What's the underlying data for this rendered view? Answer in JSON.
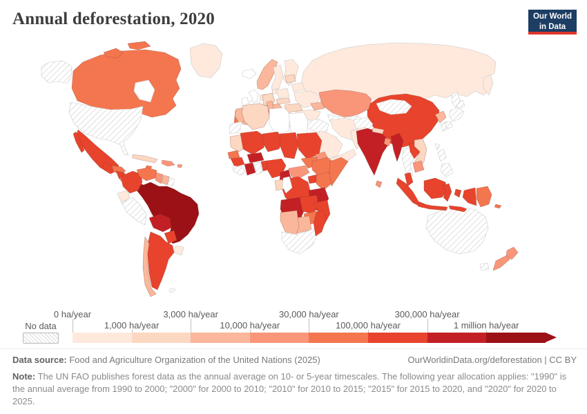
{
  "header": {
    "title": "Annual deforestation, 2020",
    "logo_line1": "Our World",
    "logo_line2": "in Data"
  },
  "legend": {
    "no_data_label": "No data",
    "ticks": [
      {
        "label": "0 ha/year",
        "row": "top"
      },
      {
        "label": "1,000 ha/year",
        "row": "bottom"
      },
      {
        "label": "3,000 ha/year",
        "row": "top"
      },
      {
        "label": "10,000 ha/year",
        "row": "bottom"
      },
      {
        "label": "30,000 ha/year",
        "row": "top"
      },
      {
        "label": "100,000 ha/year",
        "row": "bottom"
      },
      {
        "label": "300,000 ha/year",
        "row": "top"
      },
      {
        "label": "1 million ha/year",
        "row": "bottom"
      }
    ]
  },
  "footer": {
    "source_label": "Data source:",
    "source_text": " Food and Agriculture Organization of the United Nations (2025)",
    "attribution": "OurWorldinData.org/deforestation | CC BY",
    "note_label": "Note:",
    "note_text": " The UN FAO publishes forest data as the annual average on 10- or 5-year timescales. The following year allocation applies: \"1990\" is the annual average from 1990 to 2000; \"2000\" for 2000 to 2010; \"2010\" for 2010 to 2015; \"2015\" for 2015 to 2020, and \"2020\" for 2020 to 2025."
  },
  "chart_data": {
    "type": "heatmap",
    "subtype": "world-choropleth-map",
    "title": "Annual deforestation, 2020",
    "unit": "ha/year",
    "legend_bin_edges": [
      "0 ha/year",
      "1,000 ha/year",
      "3,000 ha/year",
      "10,000 ha/year",
      "30,000 ha/year",
      "100,000 ha/year",
      "300,000 ha/year",
      "1 million ha/year"
    ],
    "legend_position": "bottom",
    "no_data_label": "No data",
    "no_data_pattern": "diagonal-hatch",
    "palette": {
      "b0": "#ffffff",
      "b1": "#fee9dc",
      "b2": "#fcd7c2",
      "b3": "#fab79b",
      "b4": "#f9967a",
      "b5": "#f4764f",
      "b6": "#e8432c",
      "b7": "#c32026",
      "b8": "#9b1116"
    },
    "bin_order": [
      "b1",
      "b2",
      "b3",
      "b4",
      "b5",
      "b6",
      "b7",
      "b8"
    ],
    "country_bins": {
      "alaska": "no-data",
      "canada": "b5",
      "arctic-island-1": "b5",
      "arctic-island-2": "b5",
      "greenland": "b1",
      "usa": "no-data",
      "mexico": "b6",
      "baja": "b6",
      "guatemala": "b6",
      "honduras": "b5",
      "nicaragua": "b6",
      "costa-panama": "b5",
      "cuba": "b2",
      "jamaica": "b5",
      "hispaniola": "b4",
      "puerto-rico": "b4",
      "colombia": "b6",
      "venezuela": "b5",
      "guyana": "b4",
      "suriname": "b3",
      "french-guiana": "no-data",
      "ecuador": "b1",
      "peru": "no-data",
      "brazil": "b8",
      "bolivia": "b7",
      "paraguay": "b6",
      "uruguay": "b1",
      "argentina": "b6",
      "chile": "b3",
      "falklands": "no-data",
      "iceland": "b0",
      "norway": "b3",
      "sweden": "b1",
      "finland": "b1",
      "denmark": "b1",
      "uk": "b0",
      "ireland": "b0",
      "benelux": "b1",
      "germany": "b2",
      "france": "no-data",
      "spain": "b3",
      "portugal": "b5",
      "switz-austria": "b3",
      "italy": "b6",
      "sicily": "b6",
      "poland": "b1",
      "czech-slovakia": "b2",
      "hungary-romania": "b2",
      "balkans": "no-data",
      "ukraine": "b1",
      "belarus": "b1",
      "baltics": "b2",
      "russia": "b1",
      "kamchatka": "b1",
      "sakhalin": "no-data",
      "kazakhstan": "b4",
      "central-asia": "no-data",
      "caucasus": "b3",
      "turkey": "b1",
      "syria-iraq": "no-data",
      "iran": "b1",
      "afghanistan": "no-data",
      "pakistan": "b1",
      "saudi-arabia": "b1",
      "yemen-oman": "b1",
      "india": "b7",
      "sri-lanka": "b4",
      "nepal": "b2",
      "bangladesh": "b4",
      "china": "b6",
      "mongolia": "no-data",
      "myanmar": "b7",
      "thailand": "no-data",
      "laos": "b6",
      "vietnam": "b2",
      "cambodia": "b4",
      "malay-peninsula": "b6",
      "sumatra": "b6",
      "java": "b6",
      "borneo": "b6",
      "sulawesi": "b6",
      "moluccas": "b6",
      "lesser-sunda": "b6",
      "papua-indonesia": "b6",
      "papua-new-guinea": "b5",
      "solomon": "b5",
      "philippines-north": "no-data",
      "philippines-south": "no-data",
      "taiwan": "no-data",
      "north-korea": "b3",
      "south-korea": "no-data",
      "japan-hokkaido": "no-data",
      "japan-honshu": "no-data",
      "japan-kyushu": "no-data",
      "morocco": "b3",
      "western-sahara": "no-data",
      "algeria": "b2",
      "tunisia": "b3",
      "libya": "b0",
      "egypt": "b0",
      "mauritania": "b2",
      "mali": "b6",
      "niger": "b6",
      "chad": "b6",
      "sudan": "b6",
      "south-sudan": "b5",
      "eritrea": "b4",
      "ethiopia": "b5",
      "somalia": "b5",
      "senegal": "b5",
      "guinea": "b6",
      "sierra-liberia": "no-data",
      "ivory-coast": "b7",
      "ghana": "no-data",
      "togo-benin": "b6",
      "burkina-faso": "b7",
      "nigeria": "b6",
      "cameroon": "b7",
      "central-african-republic": "b4",
      "uganda": "b6",
      "kenya": "b5",
      "drc": "b6",
      "gabon": "b2",
      "congo": "b0",
      "tanzania": "b7",
      "angola": "b7",
      "zambia": "b6",
      "malawi": "b7",
      "mozambique": "b6",
      "zimbabwe": "b5",
      "botswana": "b3",
      "namibia": "b3",
      "south-africa": "no-data",
      "madagascar": "b6",
      "australia": "no-data",
      "tasmania": "no-data",
      "new-zealand-north": "b4",
      "new-zealand-south": "b4"
    }
  }
}
